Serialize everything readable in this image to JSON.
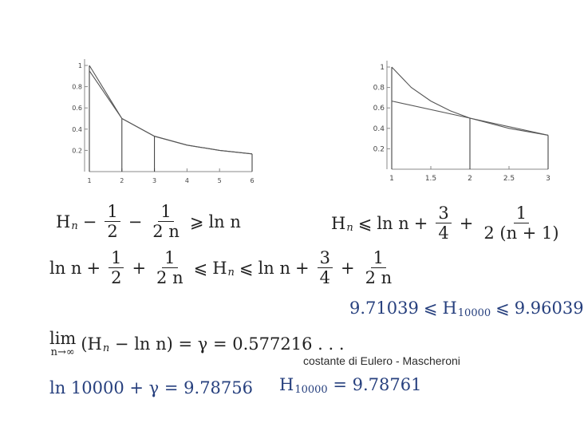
{
  "chart_data": [
    {
      "type": "line",
      "title": "",
      "xlabel": "",
      "ylabel": "",
      "xlim": [
        1,
        6
      ],
      "ylim": [
        0,
        1
      ],
      "x_ticks": [
        "1",
        "2",
        "3",
        "4",
        "5",
        "6"
      ],
      "y_ticks": [
        "1",
        "0.8",
        "0.6",
        "0.4",
        "0.2"
      ],
      "series": [
        {
          "values": [
            [
              1,
              1
            ],
            [
              2,
              0.5
            ],
            [
              3,
              0.333
            ],
            [
              4,
              0.25
            ],
            [
              5,
              0.2
            ],
            [
              6,
              0.167
            ]
          ]
        },
        {
          "values": [
            [
              1,
              0.95
            ],
            [
              2,
              0.5
            ],
            [
              3,
              0.333
            ],
            [
              4,
              0.25
            ],
            [
              5,
              0.2
            ],
            [
              6,
              0.167
            ]
          ]
        }
      ],
      "vertical_lines_at": [
        1,
        2,
        3,
        6
      ]
    },
    {
      "type": "line",
      "title": "",
      "xlabel": "",
      "ylabel": "",
      "xlim": [
        1,
        3
      ],
      "ylim": [
        0,
        1
      ],
      "x_ticks": [
        "1",
        "1.5",
        "2",
        "2.5",
        "3"
      ],
      "y_ticks": [
        "1",
        "0.8",
        "0.6",
        "0.4",
        "0.2"
      ],
      "series": [
        {
          "values": [
            [
              1,
              1
            ],
            [
              1.25,
              0.8
            ],
            [
              1.5,
              0.667
            ],
            [
              1.75,
              0.571
            ],
            [
              2,
              0.5
            ],
            [
              2.5,
              0.4
            ],
            [
              3,
              0.333
            ]
          ]
        },
        {
          "values": [
            [
              1,
              0.667
            ],
            [
              2,
              0.5
            ],
            [
              3,
              0.333
            ]
          ]
        }
      ],
      "vertical_lines_at": [
        1,
        2,
        3
      ]
    }
  ],
  "equations": {
    "eq1": {
      "H": "H",
      "sub": "n",
      "minus1": "−",
      "one1": "1",
      "two": "2",
      "minus2": "−",
      "one2": "1",
      "twon": "2 n",
      "rel": "⩾",
      "rhs": "ln n"
    },
    "eq2": {
      "H": "H",
      "sub": "n",
      "rel": "⩽",
      "lnn": "ln n",
      "plus1": "+",
      "three": "3",
      "four": "4",
      "plus2": "+",
      "one": "1",
      "den": "2 (n + 1)"
    },
    "eq3": {
      "lnn": "ln n",
      "plus1": "+",
      "one1": "1",
      "two": "2",
      "plus2": "+",
      "one2": "1",
      "twon": "2 n",
      "rel1": "⩽",
      "H": "H",
      "sub": "n",
      "rel2": "⩽",
      "lnn2": "ln n",
      "plus3": "+",
      "three": "3",
      "four": "4",
      "plus4": "+",
      "one3": "1",
      "twon2": "2 n"
    },
    "eq4": {
      "lhs": "9.71039",
      "rel1": "⩽",
      "H": "H",
      "sub": "10000",
      "rel2": "⩽",
      "rhs": "9.96039"
    },
    "eq5": {
      "lim": "lim",
      "lim_sub": "n→∞",
      "body": "(H",
      "sub": "n",
      "rest": " − ln n) = γ = 0.577216 . . ."
    },
    "eq6": {
      "text": "ln 10000 + γ = 9.78756"
    },
    "eq7": {
      "H": "H",
      "sub": "10000",
      "rest": " = 9.78761"
    }
  },
  "caption": "costante di Eulero - Mascheroni",
  "colors": {
    "blue": "#27407e",
    "plot_line": "#555555",
    "axis": "#888888"
  }
}
